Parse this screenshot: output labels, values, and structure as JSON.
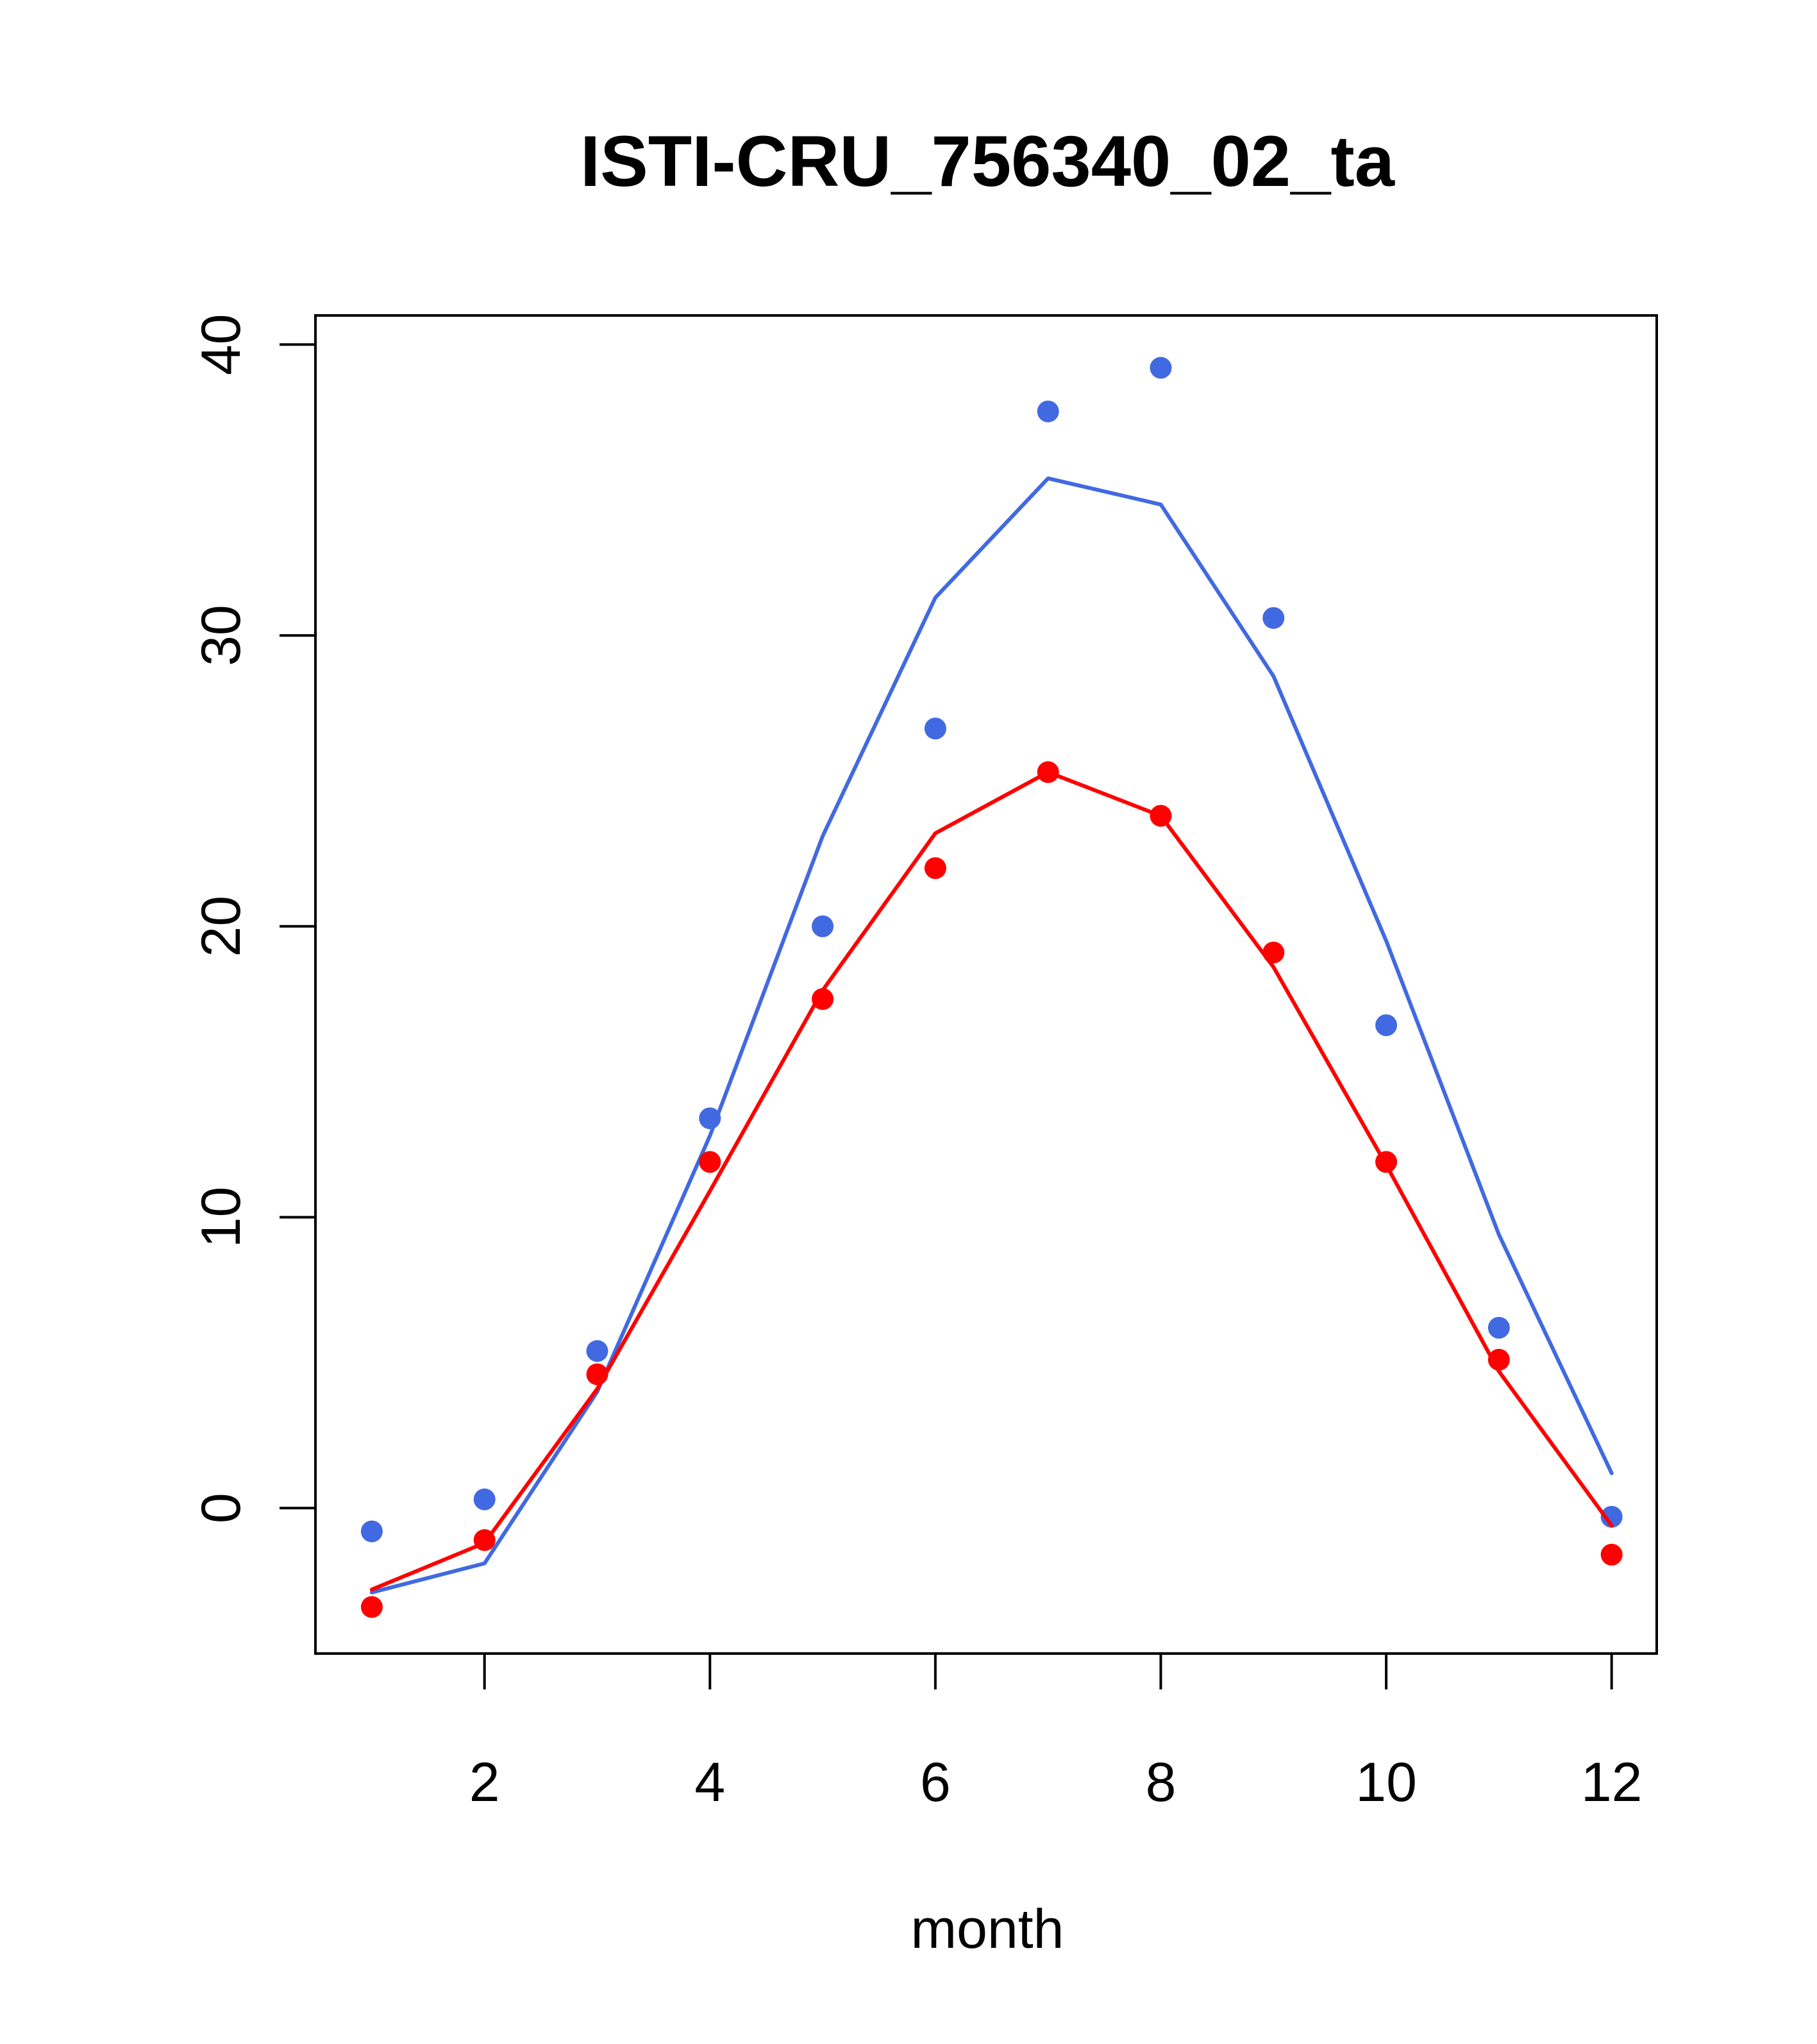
{
  "chart_data": {
    "type": "line",
    "title": "ISTI-CRU_756340_02_ta",
    "xlabel": "month",
    "ylabel": "",
    "xlim": [
      0.5,
      12.4
    ],
    "ylim": [
      -5,
      41
    ],
    "xticks": [
      2,
      4,
      6,
      8,
      10,
      12
    ],
    "yticks": [
      0,
      10,
      20,
      30,
      40
    ],
    "grid": false,
    "series": [
      {
        "color": "#4169E1",
        "line": {
          "x": [
            1,
            2,
            3,
            4,
            5,
            6,
            7,
            8,
            9,
            10,
            11,
            12
          ],
          "y": [
            -2.9,
            -1.9,
            4.0,
            12.8,
            23.1,
            31.3,
            35.4,
            34.5,
            28.6,
            19.5,
            9.4,
            1.2
          ]
        },
        "points": {
          "x": [
            1,
            2,
            3,
            4,
            5,
            6,
            7,
            8,
            9,
            10,
            11,
            12
          ],
          "y": [
            -0.8,
            0.3,
            5.4,
            13.4,
            20.0,
            26.8,
            37.7,
            39.2,
            30.6,
            16.6,
            6.2,
            -0.3
          ]
        }
      },
      {
        "color": "#FF0000",
        "line": {
          "x": [
            1,
            2,
            3,
            4,
            5,
            6,
            7,
            8,
            9,
            10,
            11,
            12
          ],
          "y": [
            -2.8,
            -1.2,
            4.1,
            10.9,
            17.8,
            23.2,
            25.3,
            23.8,
            18.6,
            11.8,
            4.7,
            -0.6
          ]
        },
        "points": {
          "x": [
            1,
            2,
            3,
            4,
            5,
            6,
            7,
            8,
            9,
            10,
            11,
            12
          ],
          "y": [
            -3.4,
            -1.1,
            4.6,
            11.9,
            17.5,
            22.0,
            25.3,
            23.8,
            19.1,
            11.9,
            5.1,
            -1.6
          ]
        }
      }
    ]
  }
}
